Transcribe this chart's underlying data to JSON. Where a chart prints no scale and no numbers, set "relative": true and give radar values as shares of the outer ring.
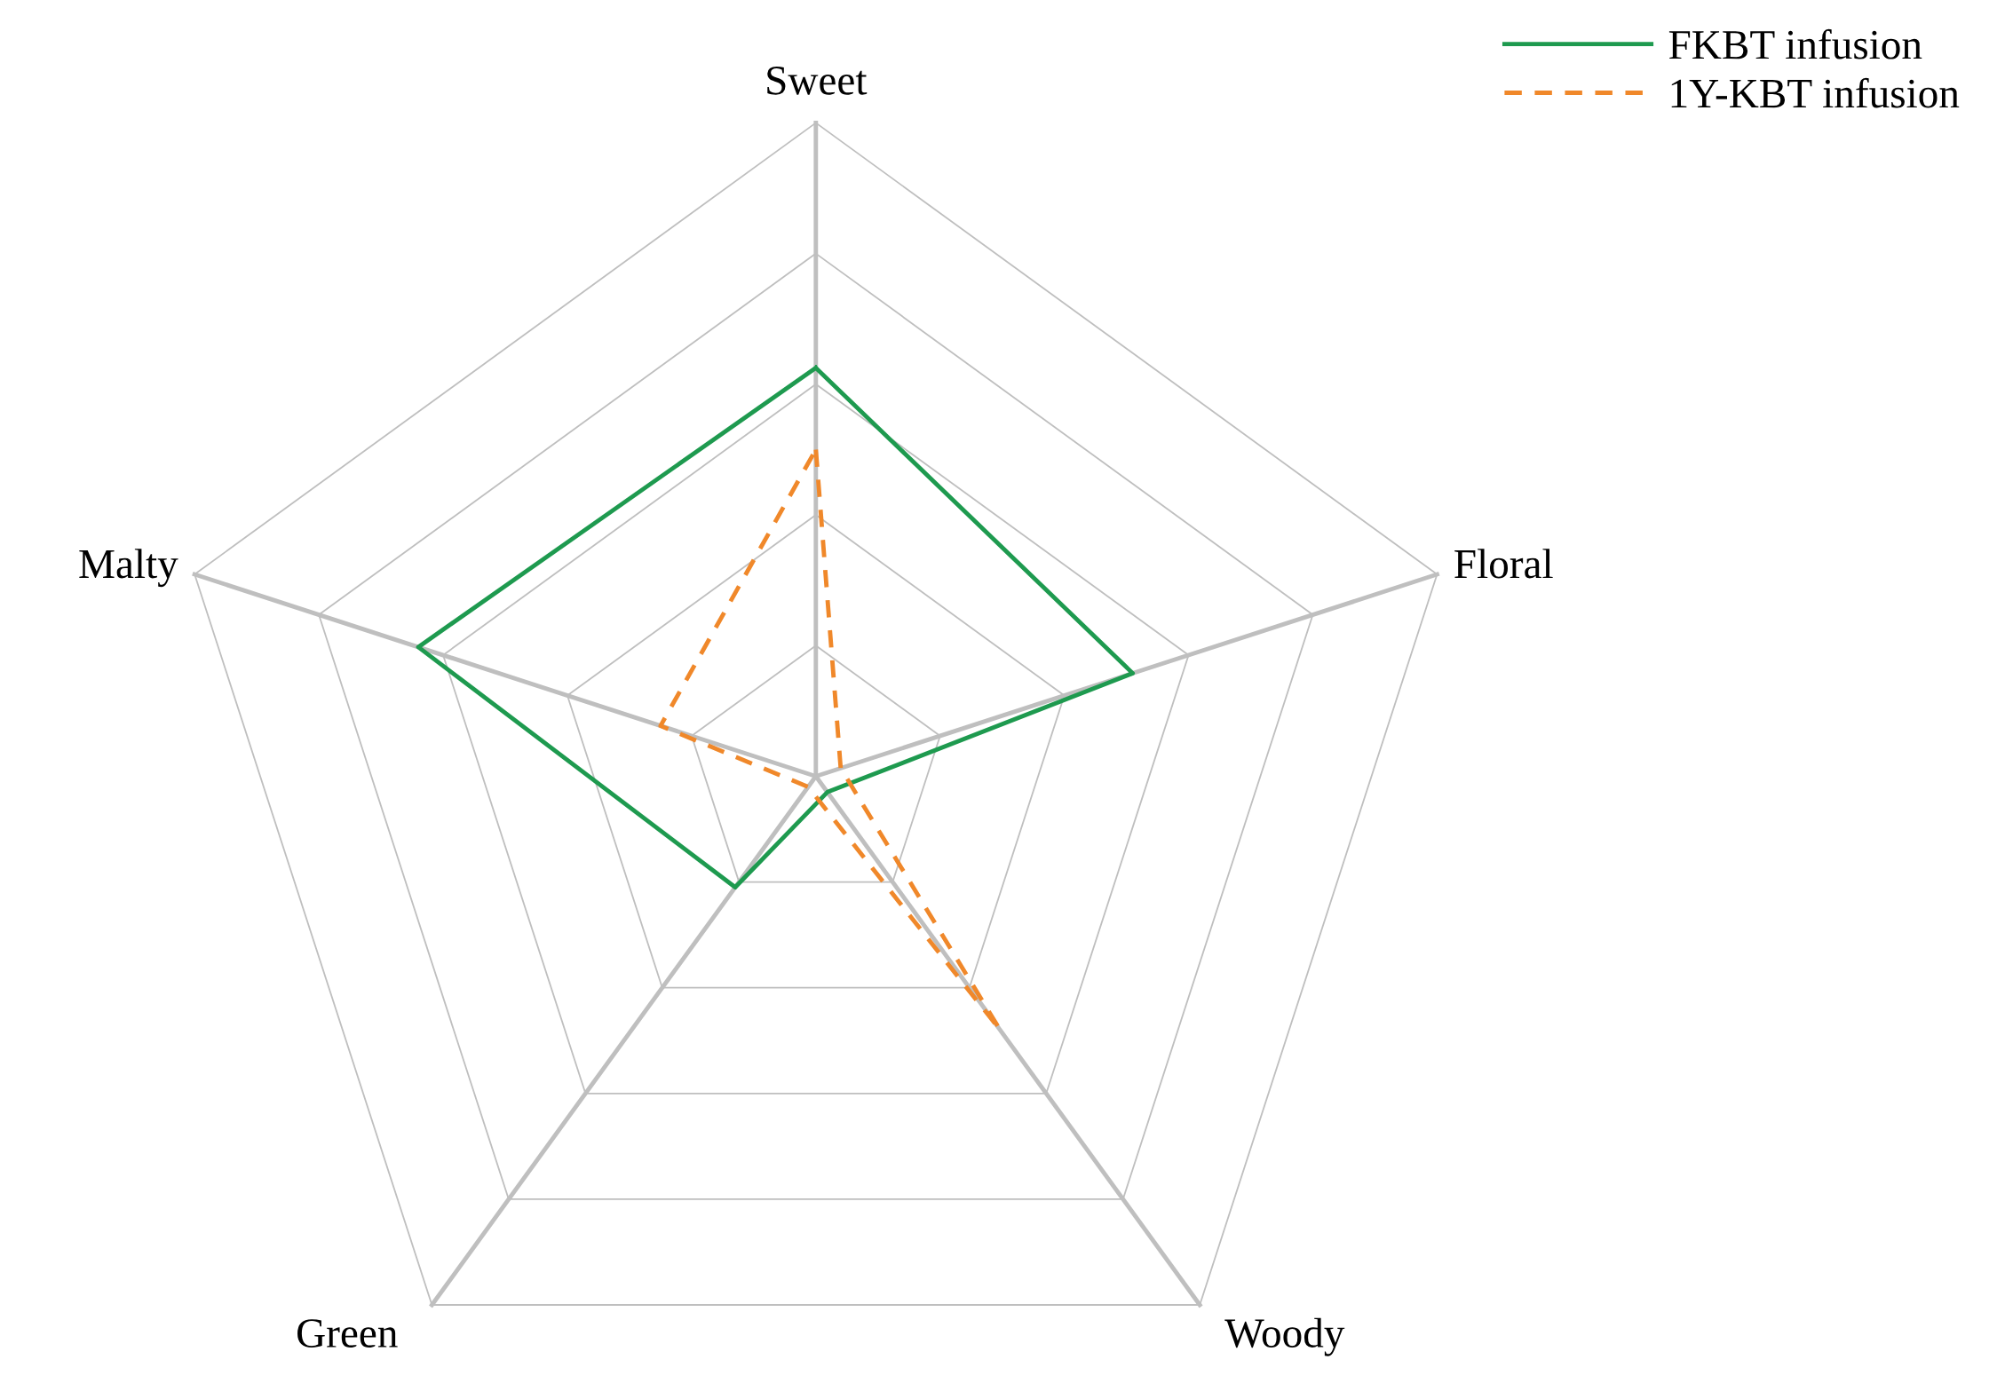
{
  "chart_data": {
    "type": "radar",
    "relative": true,
    "grid": true,
    "legend": "top right",
    "categories": [
      "Sweet",
      "Floral",
      "Woody",
      "Green",
      "Malty"
    ],
    "series": [
      {
        "name": "FKBT infusion",
        "color": "#1e9a4f",
        "line_style": "solid",
        "values": [
          0.625,
          0.51,
          0.03,
          0.21,
          0.64
        ]
      },
      {
        "name": "1Y-KBT infusion",
        "color": "#f0882a",
        "line_style": "dashed",
        "values": [
          0.5,
          0.04,
          0.48,
          0.02,
          0.25
        ]
      }
    ]
  }
}
